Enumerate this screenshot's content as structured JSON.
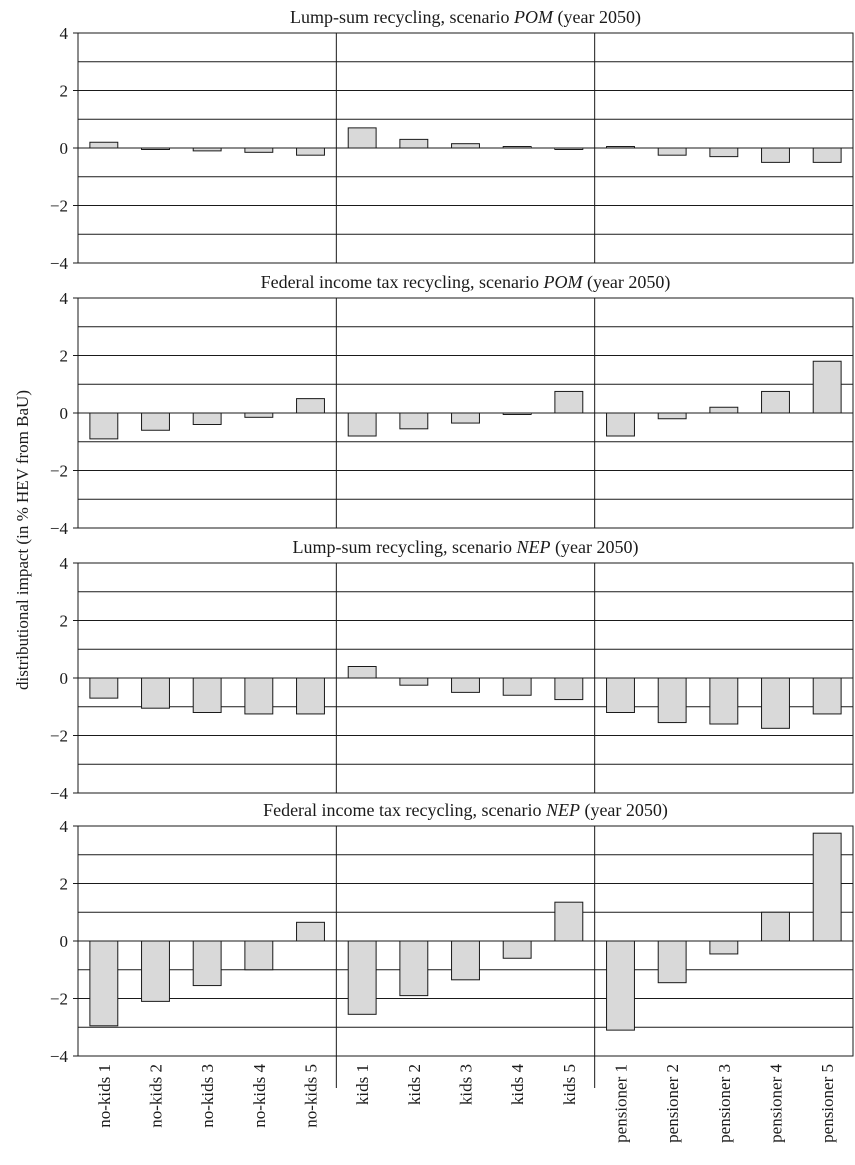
{
  "chart_data": {
    "type": "bar",
    "ylabel": "distributional impact (in % HEV from BaU)",
    "ylim": [
      -4,
      4
    ],
    "yticks": [
      4,
      2,
      0,
      -2,
      -4
    ],
    "ytick_labels": [
      "4",
      "2",
      "0",
      "−2",
      "−4"
    ],
    "grid": true,
    "categories": [
      "no-kids 1",
      "no-kids 2",
      "no-kids 3",
      "no-kids 4",
      "no-kids 5",
      "kids 1",
      "kids 2",
      "kids 3",
      "kids 4",
      "kids 5",
      "pensioner 1",
      "pensioner 2",
      "pensioner 3",
      "pensioner 4",
      "pensioner 5"
    ],
    "groups": [
      {
        "categories": [
          "no-kids 1",
          "no-kids 2",
          "no-kids 3",
          "no-kids 4",
          "no-kids 5"
        ]
      },
      {
        "categories": [
          "kids 1",
          "kids 2",
          "kids 3",
          "kids 4",
          "kids 5"
        ]
      },
      {
        "categories": [
          "pensioner 1",
          "pensioner 2",
          "pensioner 3",
          "pensioner 4",
          "pensioner 5"
        ]
      }
    ],
    "panels": [
      {
        "title_pre": "Lump-sum recycling, scenario ",
        "title_em": "POM",
        "title_post": " (year 2050)",
        "values": [
          0.2,
          -0.05,
          -0.1,
          -0.15,
          -0.25,
          0.7,
          0.3,
          0.15,
          0.05,
          -0.05,
          0.05,
          -0.25,
          -0.3,
          -0.5,
          -0.5
        ]
      },
      {
        "title_pre": "Federal income tax recycling, scenario ",
        "title_em": "POM",
        "title_post": " (year 2050)",
        "values": [
          -0.9,
          -0.6,
          -0.4,
          -0.15,
          0.5,
          -0.8,
          -0.55,
          -0.35,
          -0.05,
          0.75,
          -0.8,
          -0.2,
          0.2,
          0.75,
          1.8
        ]
      },
      {
        "title_pre": "Lump-sum recycling, scenario ",
        "title_em": "NEP",
        "title_post": " (year 2050)",
        "values": [
          -0.7,
          -1.05,
          -1.2,
          -1.25,
          -1.25,
          0.4,
          -0.25,
          -0.5,
          -0.6,
          -0.75,
          -1.2,
          -1.55,
          -1.6,
          -1.75,
          -1.25
        ]
      },
      {
        "title_pre": "Federal income tax recycling, scenario ",
        "title_em": "NEP",
        "title_post": " (year 2050)",
        "values": [
          -2.95,
          -2.1,
          -1.55,
          -1.0,
          0.65,
          -2.55,
          -1.9,
          -1.35,
          -0.6,
          1.35,
          -3.1,
          -1.45,
          -0.45,
          1.0,
          3.75
        ]
      }
    ]
  }
}
